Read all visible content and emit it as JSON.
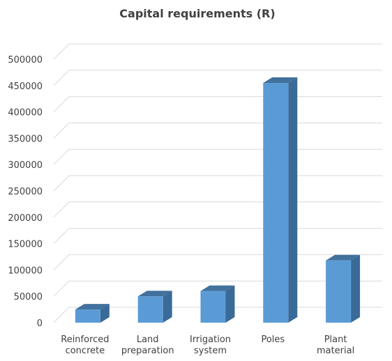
{
  "chart_data": {
    "type": "bar",
    "title": "Capital requirements (R)",
    "categories": [
      [
        "Reinforced",
        "concrete"
      ],
      [
        "Land",
        "preparation"
      ],
      [
        "Irrigation",
        "system"
      ],
      [
        "Poles"
      ],
      [
        "Plant",
        "material"
      ]
    ],
    "values": [
      25000,
      50000,
      60000,
      455000,
      118000
    ],
    "ylim": [
      0,
      500000
    ],
    "yticks": [
      0,
      50000,
      100000,
      150000,
      200000,
      250000,
      300000,
      350000,
      400000,
      450000,
      500000
    ],
    "grid": true,
    "three_d": true,
    "colors": {
      "bar_front": "#5b9bd5",
      "bar_side": "#3a6a98",
      "bar_top": "#41719c",
      "grid": "#d9d9d9",
      "text": "#404040"
    }
  }
}
